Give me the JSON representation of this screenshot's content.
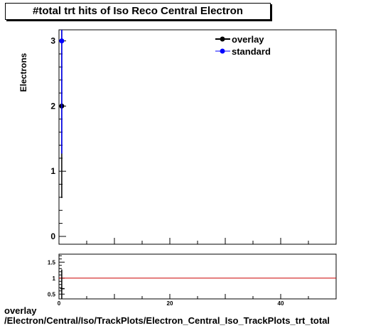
{
  "chart_title": "#total trt hits of Iso Reco Central  Electron",
  "footer": {
    "line1": "overlay",
    "line2": "/Electron/Central/Iso/TrackPlots/Electron_Central_Iso_TrackPlots_trt_total"
  },
  "colors": {
    "overlay": "#000000",
    "standard": "#0000ff",
    "ratio_line": "#cc0000",
    "frame": "#000000"
  },
  "chart_data": [
    {
      "type": "scatter",
      "title": "#total trt hits of Iso Reco Central  Electron",
      "ylabel": "Electrons",
      "xlabel": "",
      "xlim": [
        0,
        50
      ],
      "ylim": [
        -0.12,
        3.17
      ],
      "yticks": [
        "0",
        "1",
        "2",
        "3"
      ],
      "grid": false,
      "legend_position": "top-right",
      "series": [
        {
          "name": "overlay",
          "color": "#000000",
          "points": [
            {
              "x": 0.5,
              "y": 2,
              "err": 1.41
            }
          ]
        },
        {
          "name": "standard",
          "color": "#0000ff",
          "points": [
            {
              "x": 0.5,
              "y": 3,
              "err": 1.73
            }
          ]
        }
      ]
    },
    {
      "type": "line",
      "title": "",
      "xlabel": "",
      "ylabel": "",
      "xlim": [
        0,
        50
      ],
      "ylim": [
        0.35,
        1.75
      ],
      "xticks": [
        "0",
        "20",
        "40"
      ],
      "yticks": [
        "0.5",
        "1",
        "1.5"
      ],
      "reference_line": 1,
      "series": [
        {
          "name": "",
          "color": "#000000",
          "points": [
            {
              "x": 0.5,
              "y": 0.67,
              "err": 0.6
            }
          ]
        }
      ]
    }
  ]
}
